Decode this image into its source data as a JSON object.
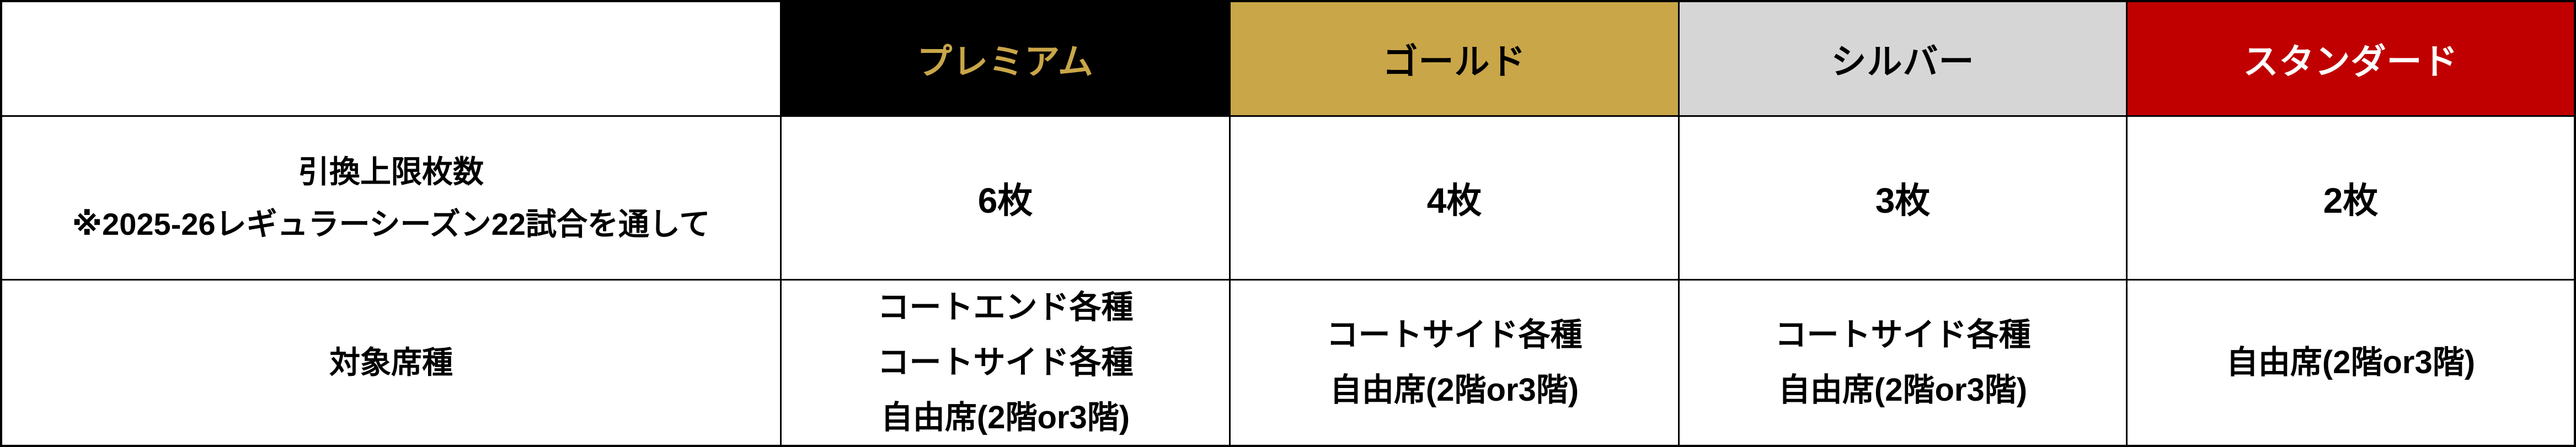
{
  "colors": {
    "premium_bg": "#000000",
    "premium_fg": "#C9A648",
    "gold_bg": "#C9A648",
    "gold_fg": "#000000",
    "silver_bg": "#D6D6D6",
    "silver_fg": "#000000",
    "standard_bg": "#C00000",
    "standard_fg": "#FFFFFF",
    "grid_border": "#000000",
    "cell_bg": "#FFFFFF"
  },
  "table": {
    "corner": "",
    "header": [
      {
        "label": "プレミアム",
        "bg": "#000000",
        "fg": "#C9A648"
      },
      {
        "label": "ゴールド",
        "bg": "#C9A648",
        "fg": "#000000"
      },
      {
        "label": "シルバー",
        "bg": "#D6D6D6",
        "fg": "#000000"
      },
      {
        "label": "スタンダード",
        "bg": "#C00000",
        "fg": "#FFFFFF"
      }
    ],
    "rows": [
      {
        "label_lines": [
          "引換上限枚数",
          "※2025-26レギュラーシーズン22試合を通して"
        ],
        "values": [
          "6枚",
          "4枚",
          "3枚",
          "2枚"
        ]
      },
      {
        "label_lines": [
          "対象席種"
        ],
        "values": [
          [
            "コートエンド各種",
            "コートサイド各種",
            "自由席(2階or3階)"
          ],
          [
            "コートサイド各種",
            "自由席(2階or3階)"
          ],
          [
            "コートサイド各種",
            "自由席(2階or3階)"
          ],
          [
            "自由席(2階or3階)"
          ]
        ]
      }
    ]
  }
}
